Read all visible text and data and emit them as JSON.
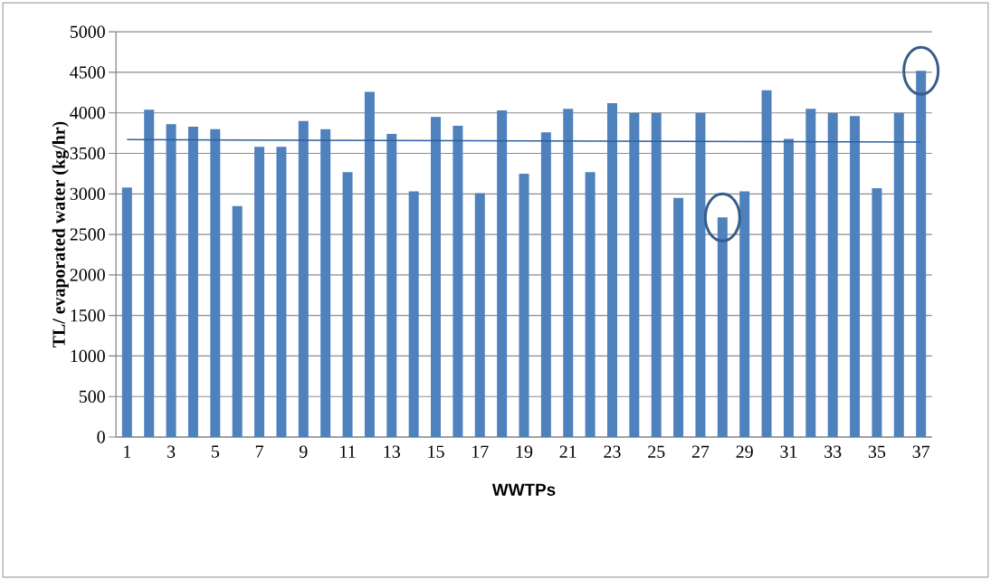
{
  "chart_data": {
    "type": "bar",
    "xlabel": "WWTPs",
    "ylabel": "TL/ evaporated water (kg/hr)",
    "categories": [
      "1",
      null,
      "3",
      null,
      "5",
      null,
      "7",
      null,
      "9",
      null,
      "11",
      null,
      "13",
      null,
      "15",
      null,
      "17",
      null,
      "19",
      null,
      "21",
      null,
      "23",
      null,
      "25",
      null,
      "27",
      null,
      "29",
      null,
      "31",
      null,
      "33",
      null,
      "35",
      null,
      "37"
    ],
    "series": [
      {
        "color": "#4f81bd",
        "values": [
          3080,
          4040,
          3860,
          3830,
          3800,
          2850,
          3580,
          3580,
          3900,
          3800,
          3270,
          4260,
          3740,
          3030,
          3950,
          3840,
          3010,
          4030,
          3250,
          3760,
          4050,
          3270,
          4120,
          4000,
          4000,
          2950,
          4000,
          2710,
          3030,
          4280,
          3680,
          4050,
          4000,
          3960,
          3070,
          4000,
          4520
        ]
      },
      {
        "type": "line",
        "color": "#2e5f9e",
        "values": [
          3670,
          null,
          null,
          null,
          null,
          null,
          null,
          null,
          null,
          null,
          null,
          null,
          null,
          null,
          null,
          null,
          null,
          null,
          null,
          null,
          null,
          null,
          null,
          null,
          null,
          null,
          null,
          null,
          null,
          null,
          null,
          null,
          null,
          null,
          null,
          null,
          3640
        ]
      }
    ],
    "ylim": [
      0,
      5000
    ],
    "yticks": [
      0,
      500,
      1000,
      1500,
      2000,
      2500,
      3000,
      3500,
      4000,
      4500,
      5000
    ],
    "grid": "y"
  }
}
